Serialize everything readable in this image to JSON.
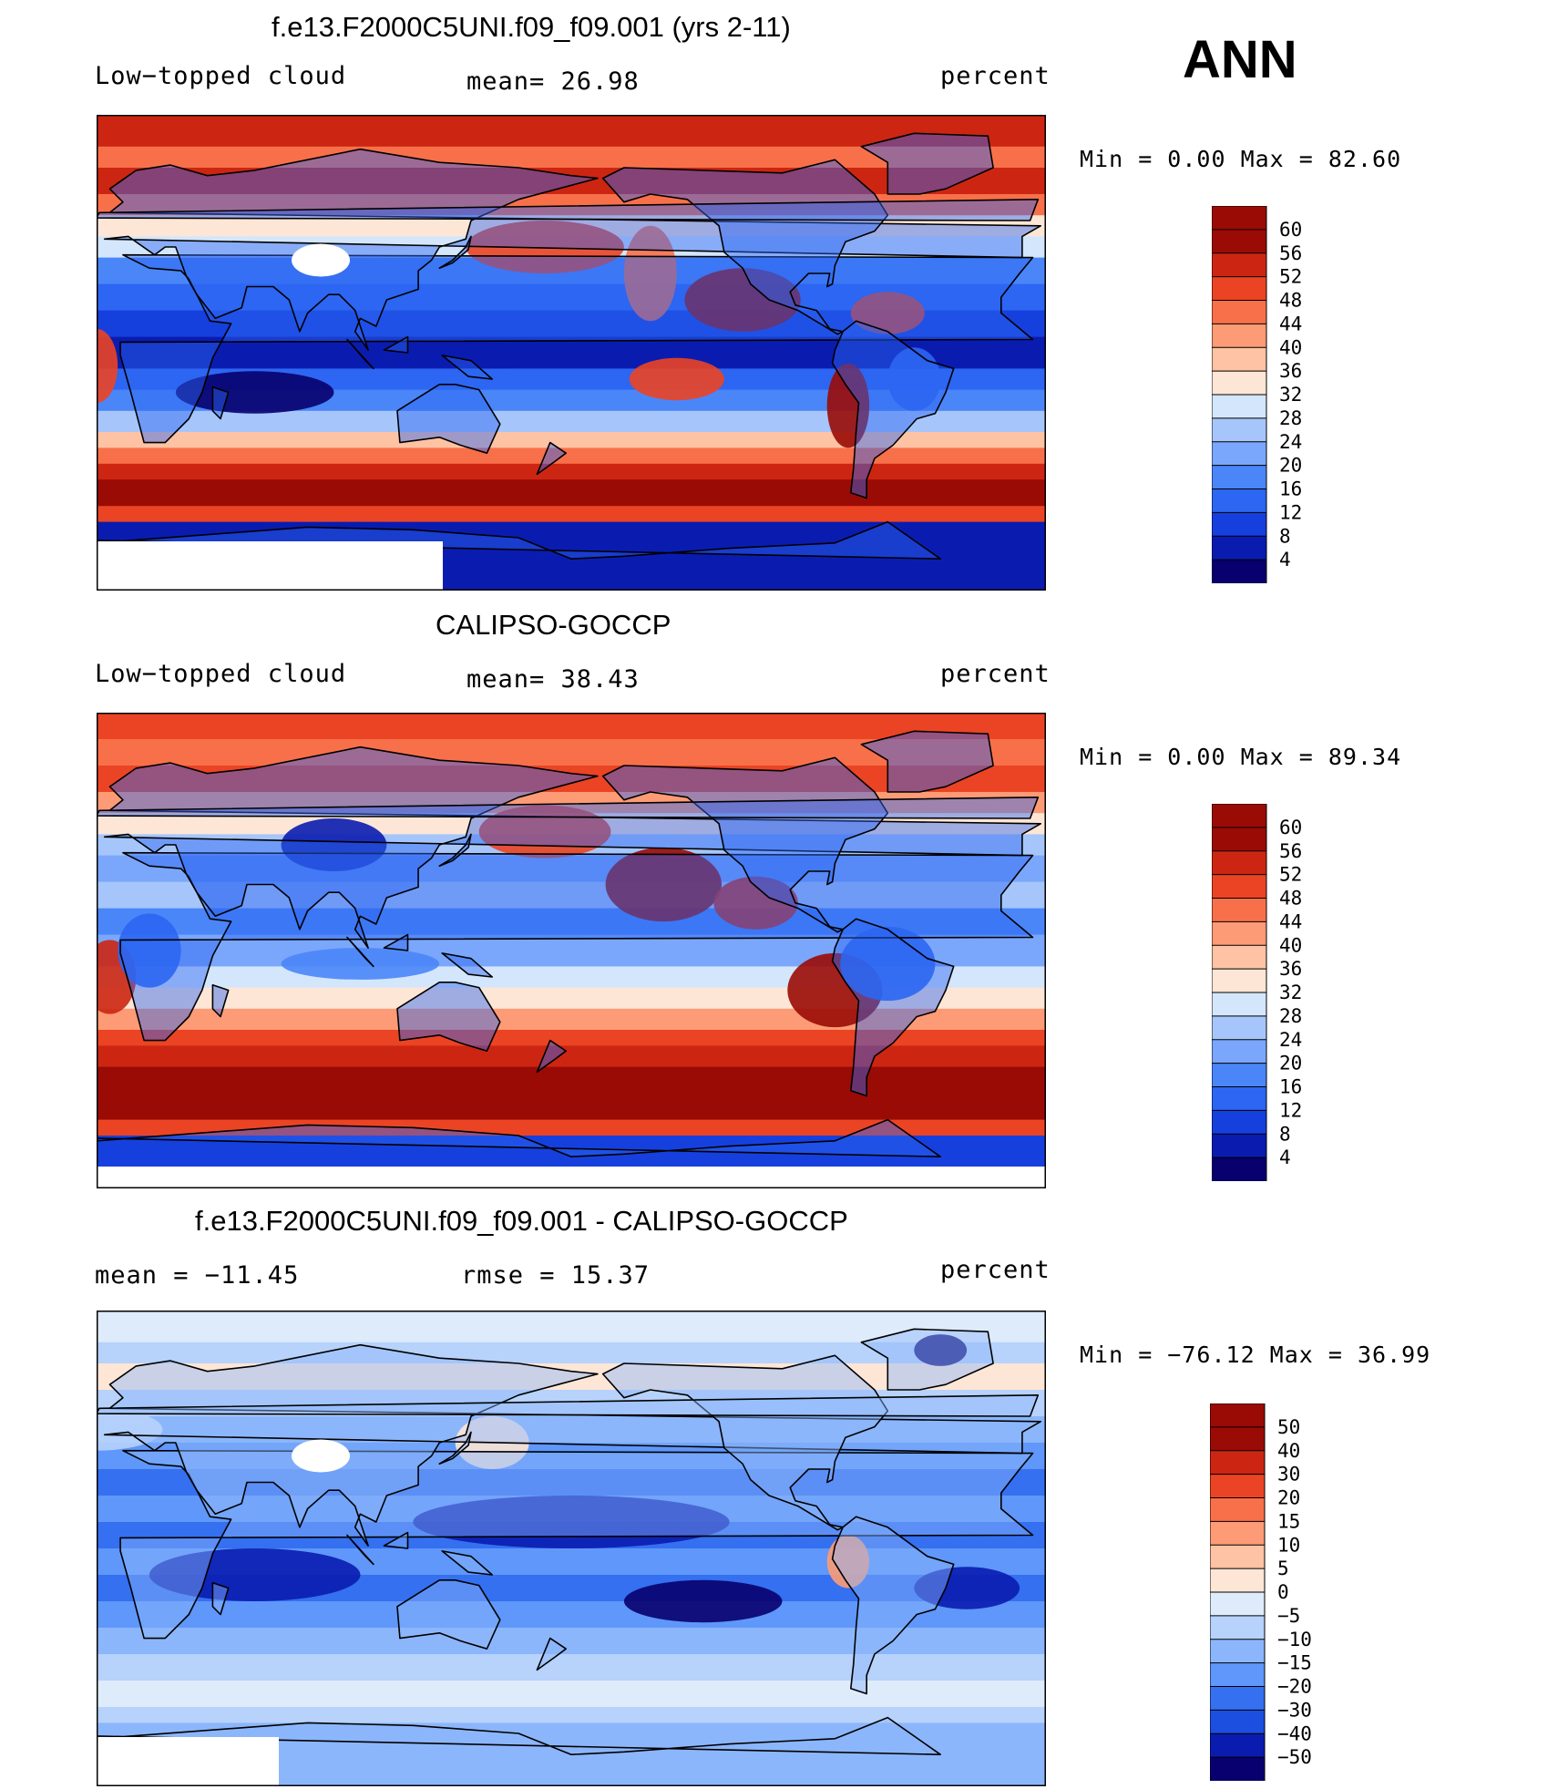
{
  "season": "ANN",
  "panels": [
    {
      "title": "f.e13.F2000C5UNI.f09_f09.001 (yrs 2-11)",
      "left_label": "Low−topped cloud",
      "center_label": "mean=   26.98",
      "right_label": "percent",
      "minmax_label": "Min  =     0.00  Max  =    82.60",
      "colorbar": {
        "levels": [
          "60",
          "56",
          "52",
          "48",
          "44",
          "40",
          "36",
          "32",
          "28",
          "24",
          "20",
          "16",
          "12",
          "8",
          "4"
        ]
      }
    },
    {
      "title": "CALIPSO-GOCCP",
      "left_label": "Low−topped cloud",
      "center_label": "mean=   38.43",
      "right_label": "percent",
      "minmax_label": "Min  =     0.00  Max  =    89.34",
      "colorbar": {
        "levels": [
          "60",
          "56",
          "52",
          "48",
          "44",
          "40",
          "36",
          "32",
          "28",
          "24",
          "20",
          "16",
          "12",
          "8",
          "4"
        ]
      }
    },
    {
      "title": "f.e13.F2000C5UNI.f09_f09.001 - CALIPSO-GOCCP",
      "left_label": "mean  =  −11.45",
      "center_label": "rmse  =    15.37",
      "right_label": "percent",
      "minmax_label": "Min  =  −76.12  Max  =    36.99",
      "colorbar": {
        "levels": [
          "50",
          "40",
          "30",
          "20",
          "15",
          "10",
          "5",
          "0",
          "−5",
          "−10",
          "−15",
          "−20",
          "−30",
          "−40",
          "−50"
        ]
      }
    }
  ],
  "chart_data": [
    {
      "type": "heatmap",
      "title": "f.e13.F2000C5UNI.f09_f09.001 (yrs 2-11)",
      "variable": "Low−topped cloud",
      "units": "percent",
      "mean": 26.98,
      "min": 0.0,
      "max": 82.6,
      "contour_levels": [
        4,
        8,
        12,
        16,
        20,
        24,
        28,
        32,
        36,
        40,
        44,
        48,
        52,
        56,
        60
      ]
    },
    {
      "type": "heatmap",
      "title": "CALIPSO-GOCCP",
      "variable": "Low−topped cloud",
      "units": "percent",
      "mean": 38.43,
      "min": 0.0,
      "max": 89.34,
      "contour_levels": [
        4,
        8,
        12,
        16,
        20,
        24,
        28,
        32,
        36,
        40,
        44,
        48,
        52,
        56,
        60
      ]
    },
    {
      "type": "heatmap",
      "title": "f.e13.F2000C5UNI.f09_f09.001 - CALIPSO-GOCCP",
      "units": "percent",
      "mean": -11.45,
      "rmse": 15.37,
      "min": -76.12,
      "max": 36.99,
      "contour_levels": [
        -50,
        -40,
        -30,
        -20,
        -15,
        -10,
        -5,
        0,
        5,
        10,
        15,
        20,
        30,
        40,
        50
      ]
    }
  ],
  "colors": {
    "seq": [
      "#08006e",
      "#0a1cb0",
      "#1640dd",
      "#2c66f2",
      "#4a86f8",
      "#7aa7fb",
      "#a6c6fb",
      "#d3e6fb",
      "#fde6d6",
      "#fdc3a4",
      "#fc9b75",
      "#f8704a",
      "#eb4424",
      "#cc2612",
      "#9a0b06"
    ],
    "diff": [
      "#08006e",
      "#0a1cb0",
      "#1c4ee0",
      "#3470f0",
      "#5f97fa",
      "#8cb6fb",
      "#b7d2fb",
      "#deebfa",
      "#fde6d6",
      "#fdc3a4",
      "#fc9b75",
      "#f8704a",
      "#eb4424",
      "#cc2612",
      "#9a0b06"
    ]
  }
}
